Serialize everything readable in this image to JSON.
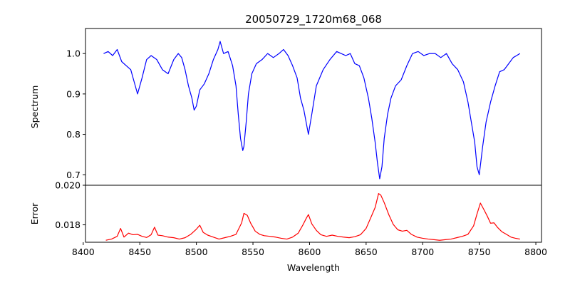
{
  "chart_data": [
    {
      "type": "line",
      "title": "20050729_1720m68_068",
      "xlabel": "",
      "ylabel": "Spectrum",
      "xlim": [
        8402,
        8805
      ],
      "ylim": [
        0.674,
        1.062
      ],
      "yticks": [
        "0.7",
        "0.8",
        "0.9",
        "1.0"
      ],
      "series": [
        {
          "color": "#0000ff",
          "x": [
            8418,
            8422,
            8426,
            8430,
            8434,
            8438,
            8442,
            8445,
            8448,
            8452,
            8456,
            8460,
            8465,
            8470,
            8475,
            8480,
            8484,
            8487,
            8490,
            8493,
            8496,
            8498,
            8500,
            8503,
            8507,
            8511,
            8515,
            8519,
            8521,
            8524,
            8528,
            8532,
            8535,
            8537,
            8539,
            8541,
            8542,
            8544,
            8546,
            8549,
            8553,
            8558,
            8563,
            8568,
            8573,
            8577,
            8581,
            8585,
            8589,
            8592,
            8595,
            8597,
            8599,
            8602,
            8606,
            8612,
            8618,
            8624,
            8628,
            8632,
            8636,
            8640,
            8644,
            8648,
            8652,
            8655,
            8658,
            8660,
            8662,
            8664,
            8666,
            8669,
            8672,
            8676,
            8681,
            8686,
            8691,
            8696,
            8701,
            8706,
            8711,
            8716,
            8721,
            8726,
            8731,
            8736,
            8740,
            8743,
            8746,
            8748,
            8750,
            8753,
            8756,
            8760,
            8764,
            8768,
            8772,
            8776,
            8780,
            8783,
            8786
          ],
          "y": [
            1.0,
            1.005,
            0.995,
            1.01,
            0.98,
            0.97,
            0.96,
            0.93,
            0.9,
            0.94,
            0.985,
            0.995,
            0.985,
            0.96,
            0.95,
            0.985,
            1.0,
            0.99,
            0.96,
            0.92,
            0.89,
            0.86,
            0.87,
            0.91,
            0.925,
            0.95,
            0.985,
            1.01,
            1.03,
            1.0,
            1.005,
            0.97,
            0.92,
            0.85,
            0.79,
            0.76,
            0.77,
            0.83,
            0.9,
            0.95,
            0.975,
            0.985,
            1.0,
            0.99,
            1.0,
            1.01,
            0.995,
            0.97,
            0.94,
            0.89,
            0.86,
            0.83,
            0.8,
            0.85,
            0.92,
            0.96,
            0.985,
            1.005,
            1.0,
            0.995,
            1.0,
            0.975,
            0.97,
            0.94,
            0.89,
            0.84,
            0.78,
            0.73,
            0.69,
            0.72,
            0.79,
            0.85,
            0.89,
            0.92,
            0.935,
            0.97,
            1.0,
            1.005,
            0.995,
            1.0,
            1.0,
            0.99,
            1.0,
            0.975,
            0.96,
            0.93,
            0.88,
            0.83,
            0.78,
            0.72,
            0.7,
            0.77,
            0.83,
            0.88,
            0.92,
            0.955,
            0.96,
            0.975,
            0.99,
            0.995,
            1.0
          ]
        }
      ]
    },
    {
      "type": "line",
      "title": "",
      "xlabel": "Wavelength",
      "ylabel": "Error",
      "xlim": [
        8402,
        8805
      ],
      "ylim": [
        0.01712,
        0.02
      ],
      "xticks": [
        "8400",
        "8450",
        "8500",
        "8550",
        "8600",
        "8650",
        "8700",
        "8750",
        "8800"
      ],
      "yticks": [
        "0.018",
        "0.020"
      ],
      "series": [
        {
          "color": "#ff0000",
          "x": [
            8420,
            8425,
            8430,
            8433,
            8436,
            8440,
            8444,
            8448,
            8452,
            8456,
            8460,
            8463,
            8466,
            8470,
            8475,
            8480,
            8485,
            8490,
            8495,
            8500,
            8503,
            8506,
            8510,
            8515,
            8520,
            8525,
            8530,
            8535,
            8540,
            8542,
            8545,
            8548,
            8552,
            8556,
            8560,
            8565,
            8570,
            8575,
            8580,
            8585,
            8590,
            8594,
            8597,
            8599,
            8602,
            8606,
            8610,
            8615,
            8620,
            8625,
            8630,
            8635,
            8640,
            8645,
            8650,
            8655,
            8658,
            8661,
            8663,
            8666,
            8670,
            8674,
            8678,
            8682,
            8686,
            8690,
            8695,
            8700,
            8705,
            8710,
            8715,
            8720,
            8725,
            8730,
            8735,
            8740,
            8745,
            8748,
            8751,
            8754,
            8757,
            8760,
            8763,
            8766,
            8770,
            8774,
            8778,
            8782,
            8786
          ],
          "y": [
            0.01722,
            0.01728,
            0.01742,
            0.01782,
            0.01738,
            0.01758,
            0.0175,
            0.01752,
            0.01742,
            0.01736,
            0.0175,
            0.01788,
            0.01748,
            0.01745,
            0.01738,
            0.01735,
            0.01728,
            0.01735,
            0.01752,
            0.01778,
            0.01798,
            0.01762,
            0.01748,
            0.01738,
            0.01728,
            0.01735,
            0.01742,
            0.01752,
            0.0181,
            0.01858,
            0.01848,
            0.01808,
            0.01768,
            0.01752,
            0.01745,
            0.01742,
            0.01738,
            0.01732,
            0.01728,
            0.01738,
            0.01758,
            0.01798,
            0.01832,
            0.01852,
            0.01805,
            0.01772,
            0.0175,
            0.01742,
            0.01748,
            0.01742,
            0.01738,
            0.01735,
            0.0174,
            0.0175,
            0.01782,
            0.01848,
            0.01888,
            0.01958,
            0.0195,
            0.01912,
            0.01852,
            0.01802,
            0.01775,
            0.01768,
            0.01772,
            0.01752,
            0.01738,
            0.01732,
            0.01728,
            0.01725,
            0.01722,
            0.01725,
            0.01728,
            0.01735,
            0.01742,
            0.01752,
            0.01795,
            0.01855,
            0.0191,
            0.01878,
            0.01845,
            0.01808,
            0.0181,
            0.01788,
            0.01765,
            0.01752,
            0.01738,
            0.01732,
            0.01728
          ]
        }
      ]
    }
  ]
}
